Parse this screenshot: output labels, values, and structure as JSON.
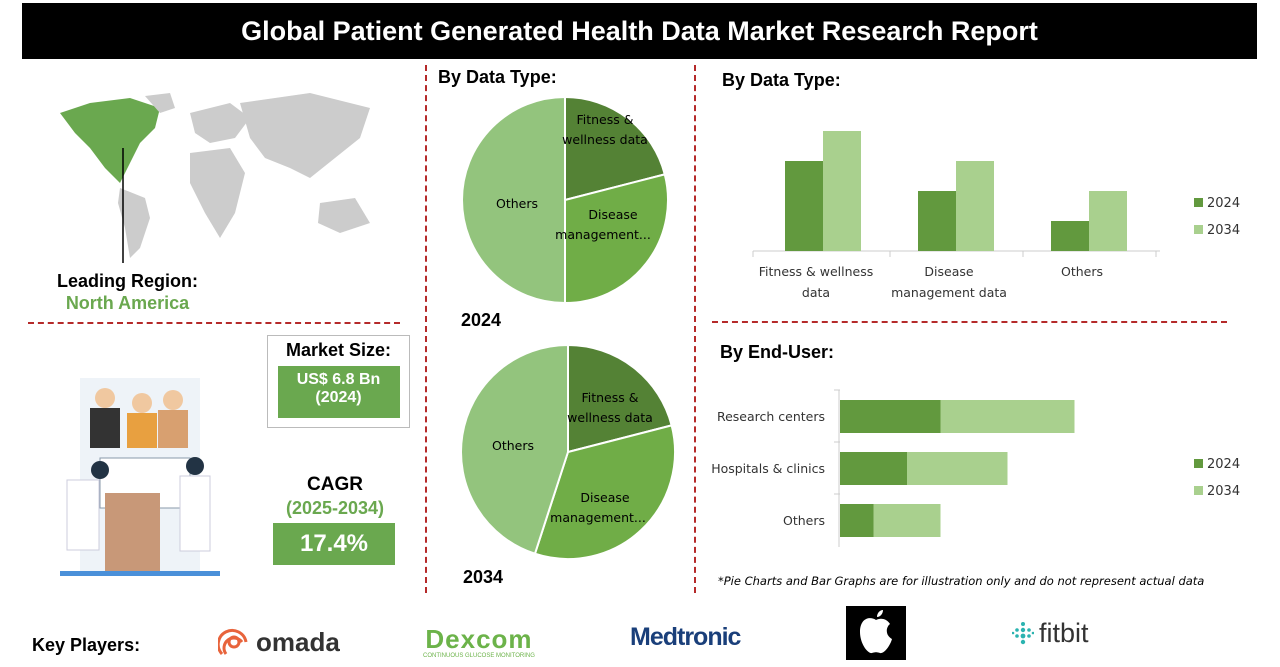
{
  "title": "Global Patient Generated Health Data Market Research Report",
  "region": {
    "label": "Leading Region:",
    "value": "North America"
  },
  "market_size": {
    "label": "Market Size:",
    "value": "US$ 6.8 Bn",
    "year": "(2024)"
  },
  "cagr": {
    "label": "CAGR",
    "period": "(2025-2034)",
    "value": "17.4%"
  },
  "pie_section_title": "By Data Type:",
  "bar_section_title": "By  Data Type:",
  "enduser_section_title": "By End-User:",
  "disclaimer": "*Pie Charts and Bar Graphs are for illustration only and do not represent actual data",
  "key_players": {
    "label": "Key Players:",
    "logos": [
      "omada",
      "Dexcom",
      "Medtronic",
      "Apple",
      "fitbit"
    ],
    "dexcom_tagline": "CONTINUOUS GLUCOSE MONITORING"
  },
  "colors": {
    "dark": "#62993e",
    "mid": "#70ad47",
    "light": "#a9d08e",
    "pie_dark": "#548235",
    "pie_mid": "#70ad47",
    "pie_light": "#93c47d"
  },
  "chart_data": [
    {
      "type": "pie",
      "year": "2024",
      "labels": [
        "Fitness & wellness data",
        "Disease management...",
        "Others"
      ],
      "values": [
        21,
        29,
        50
      ]
    },
    {
      "type": "pie",
      "year": "2034",
      "labels": [
        "Fitness & wellness data",
        "Disease management...",
        "Others"
      ],
      "values": [
        21,
        34,
        45
      ]
    },
    {
      "type": "bar",
      "categories": [
        "Fitness & wellness data",
        "Disease management data",
        "Others"
      ],
      "series": [
        {
          "name": "2024",
          "values": [
            3,
            2,
            1
          ]
        },
        {
          "name": "2034",
          "values": [
            4,
            3,
            2
          ]
        }
      ],
      "legend": "right",
      "grid": false
    },
    {
      "type": "bar",
      "orientation": "horizontal",
      "stacked": true,
      "categories": [
        "Research centers",
        "Hospitals & clinics",
        "Others"
      ],
      "series": [
        {
          "name": "2024",
          "values": [
            3,
            2,
            1
          ]
        },
        {
          "name": "2034",
          "values": [
            4,
            3,
            2
          ]
        }
      ],
      "legend": "right",
      "grid": false
    }
  ]
}
